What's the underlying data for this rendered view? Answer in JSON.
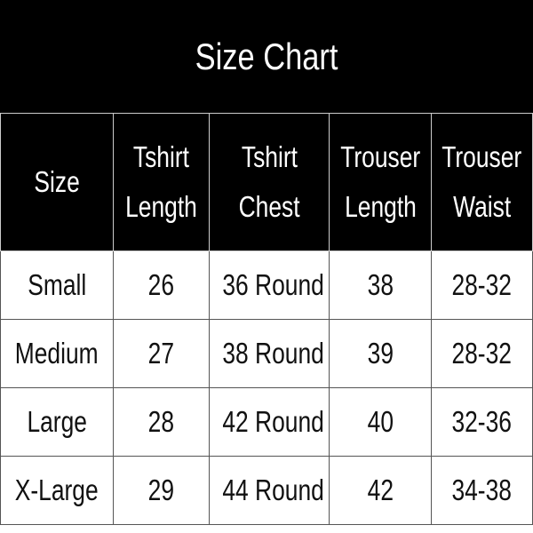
{
  "title": "Size Chart",
  "columns": [
    {
      "line1": "Size",
      "line2": ""
    },
    {
      "line1": "Tshirt",
      "line2": "Length"
    },
    {
      "line1": "Tshirt",
      "line2": "Chest"
    },
    {
      "line1": "Trouser",
      "line2": "Length"
    },
    {
      "line1": "Trouser",
      "line2": "Waist"
    }
  ],
  "rows": [
    [
      "Small",
      "26",
      "36 Round",
      "38",
      "28-32"
    ],
    [
      "Medium",
      "27",
      "38 Round",
      "39",
      "28-32"
    ],
    [
      "Large",
      "28",
      "42 Round",
      "40",
      "32-36"
    ],
    [
      "X-Large",
      "29",
      "44 Round",
      "42",
      "34-38"
    ]
  ],
  "colors": {
    "header_bg": "#000000",
    "header_text": "#ffffff",
    "body_bg": "#ffffff",
    "body_text": "#111111"
  }
}
